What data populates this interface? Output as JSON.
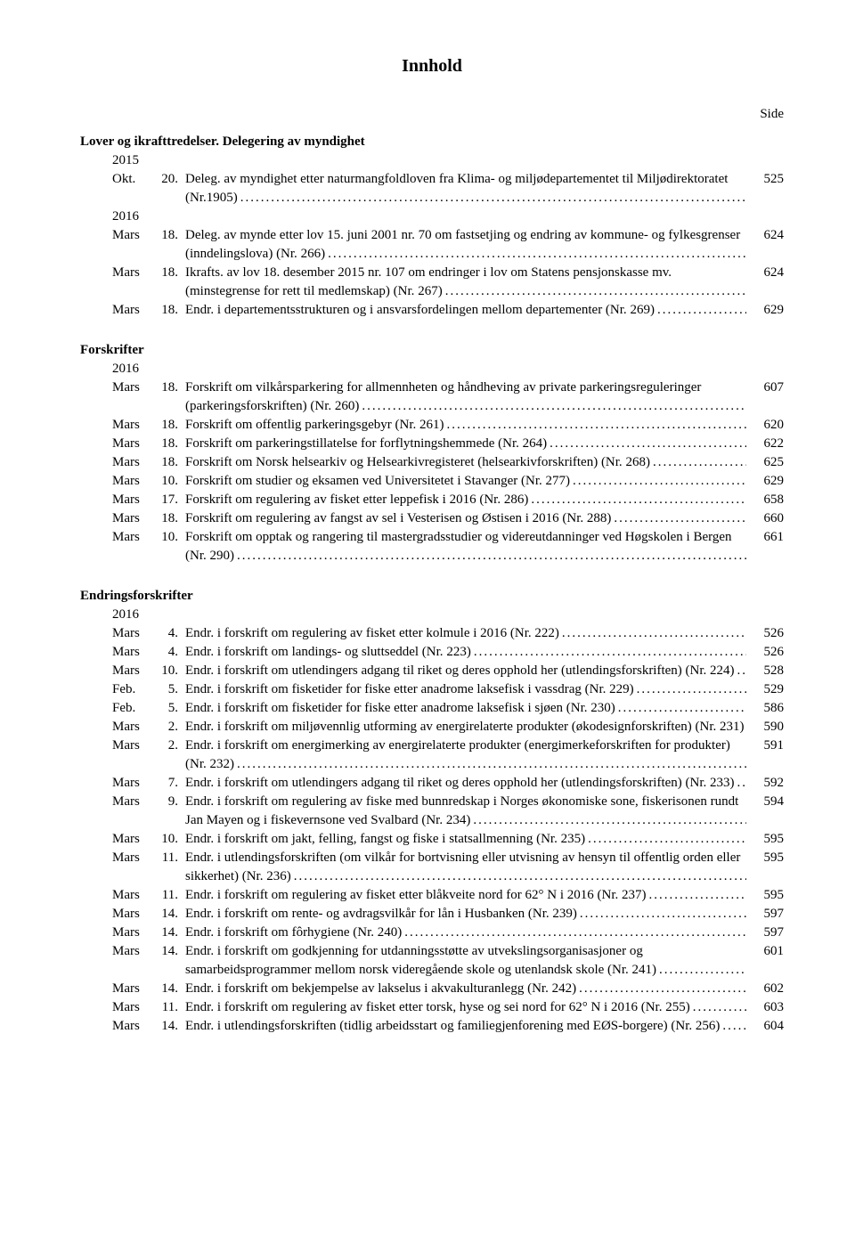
{
  "title": "Innhold",
  "side_label": "Side",
  "sections": [
    {
      "heading": "Lover og ikrafttredelser. Delegering av myndighet",
      "groups": [
        {
          "year": "2015",
          "entries": [
            {
              "month": "Okt.",
              "day": "20.",
              "text": "Deleg. av myndighet etter naturmangfoldloven fra Klima- og miljødepartementet til Miljødirektoratet (Nr.1905)",
              "page": "525"
            }
          ]
        },
        {
          "year": "2016",
          "entries": [
            {
              "month": "Mars",
              "day": "18.",
              "text": "Deleg. av mynde etter lov 15. juni 2001 nr. 70 om fastsetjing og endring av kommune- og fylkesgrenser (inndelingslova) (Nr. 266)",
              "page": "624"
            },
            {
              "month": "Mars",
              "day": "18.",
              "text": "Ikrafts. av lov 18. desember 2015 nr. 107 om endringer i lov om Statens pensjonskasse mv. (minstegrense for rett til medlemskap) (Nr. 267)",
              "page": "624"
            },
            {
              "month": "Mars",
              "day": "18.",
              "text": "Endr. i departementsstrukturen og i ansvarsfordelingen mellom departementer (Nr. 269)",
              "page": "629"
            }
          ]
        }
      ]
    },
    {
      "heading": "Forskrifter",
      "groups": [
        {
          "year": "2016",
          "entries": [
            {
              "month": "Mars",
              "day": "18.",
              "text": "Forskrift om vilkårsparkering for allmennheten og håndheving av private parkeringsreguleringer (parkeringsforskriften) (Nr. 260)",
              "page": "607"
            },
            {
              "month": "Mars",
              "day": "18.",
              "text": "Forskrift om offentlig parkeringsgebyr (Nr. 261)",
              "page": "620"
            },
            {
              "month": "Mars",
              "day": "18.",
              "text": "Forskrift om parkeringstillatelse for forflytningshemmede (Nr. 264)",
              "page": "622"
            },
            {
              "month": "Mars",
              "day": "18.",
              "text": "Forskrift om Norsk helsearkiv og Helsearkivregisteret (helsearkivforskriften) (Nr. 268)",
              "page": "625"
            },
            {
              "month": "Mars",
              "day": "10.",
              "text": "Forskrift om studier og eksamen ved Universitetet i Stavanger (Nr. 277)",
              "page": "629"
            },
            {
              "month": "Mars",
              "day": "17.",
              "text": "Forskrift om regulering av fisket etter leppefisk i 2016 (Nr. 286)",
              "page": "658"
            },
            {
              "month": "Mars",
              "day": "18.",
              "text": "Forskrift om regulering av fangst av sel i Vesterisen og Østisen i 2016 (Nr. 288)",
              "page": "660"
            },
            {
              "month": "Mars",
              "day": "10.",
              "text": "Forskrift om opptak og rangering til mastergradsstudier og videreutdanninger ved Høgskolen i Bergen (Nr. 290)",
              "page": "661"
            }
          ]
        }
      ]
    },
    {
      "heading": "Endringsforskrifter",
      "groups": [
        {
          "year": "2016",
          "entries": [
            {
              "month": "Mars",
              "day": "4.",
              "text": "Endr. i forskrift om regulering av fisket etter kolmule i 2016 (Nr. 222)",
              "page": "526"
            },
            {
              "month": "Mars",
              "day": "4.",
              "text": "Endr. i forskrift om landings- og sluttseddel (Nr. 223)",
              "page": "526"
            },
            {
              "month": "Mars",
              "day": "10.",
              "text": "Endr. i forskrift om utlendingers adgang til riket og deres opphold her (utlendingsforskriften) (Nr. 224)",
              "page": "528"
            },
            {
              "month": "Feb.",
              "day": "5.",
              "text": "Endr. i forskrift om fisketider for fiske etter anadrome laksefisk i vassdrag (Nr. 229)",
              "page": "529"
            },
            {
              "month": "Feb.",
              "day": "5.",
              "text": "Endr. i forskrift om fisketider for fiske etter anadrome laksefisk i sjøen (Nr. 230)",
              "page": "586"
            },
            {
              "month": "Mars",
              "day": "2.",
              "text": "Endr. i forskrift om miljøvennlig utforming av energirelaterte produkter (økodesignforskriften) (Nr. 231)",
              "page": "590"
            },
            {
              "month": "Mars",
              "day": "2.",
              "text": "Endr. i forskrift om energimerking av energirelaterte produkter (energimerkeforskriften for produkter) (Nr. 232)",
              "page": "591"
            },
            {
              "month": "Mars",
              "day": "7.",
              "text": "Endr. i forskrift om utlendingers adgang til riket og deres opphold her (utlendingsforskriften) (Nr. 233)",
              "page": "592"
            },
            {
              "month": "Mars",
              "day": "9.",
              "text": "Endr. i forskrift om regulering av fiske med bunnredskap i Norges økonomiske sone, fiskerisonen rundt Jan Mayen og i fiskevernsone ved Svalbard (Nr. 234)",
              "page": "594"
            },
            {
              "month": "Mars",
              "day": "10.",
              "text": "Endr. i forskrift om jakt, felling, fangst og fiske i statsallmenning (Nr. 235)",
              "page": "595"
            },
            {
              "month": "Mars",
              "day": "11.",
              "text": "Endr. i utlendingsforskriften (om vilkår for bortvisning eller utvisning av hensyn til offentlig orden eller sikkerhet) (Nr. 236)",
              "page": "595"
            },
            {
              "month": "Mars",
              "day": "11.",
              "text": "Endr. i forskrift om regulering av fisket etter blåkveite nord for 62° N i 2016 (Nr. 237)",
              "page": "595"
            },
            {
              "month": "Mars",
              "day": "14.",
              "text": "Endr. i forskrift om rente- og avdragsvilkår for lån i Husbanken (Nr. 239)",
              "page": "597"
            },
            {
              "month": "Mars",
              "day": "14.",
              "text": "Endr. i forskrift om fôrhygiene (Nr. 240)",
              "page": "597"
            },
            {
              "month": "Mars",
              "day": "14.",
              "text": "Endr. i forskrift om godkjenning for utdanningsstøtte av utvekslingsorganisasjoner og samarbeidsprogrammer mellom norsk videregående skole og utenlandsk skole (Nr. 241)",
              "page": "601"
            },
            {
              "month": "Mars",
              "day": "14.",
              "text": "Endr. i forskrift om bekjempelse av lakselus i akvakulturanlegg (Nr. 242)",
              "page": "602"
            },
            {
              "month": "Mars",
              "day": "11.",
              "text": "Endr. i forskrift om regulering av fisket etter torsk, hyse og sei nord for 62° N i 2016 (Nr. 255)",
              "page": "603"
            },
            {
              "month": "Mars",
              "day": "14.",
              "text": "Endr. i utlendingsforskriften (tidlig arbeidsstart og familiegjenforening med EØS-borgere) (Nr. 256)",
              "page": "604"
            }
          ]
        }
      ]
    }
  ]
}
